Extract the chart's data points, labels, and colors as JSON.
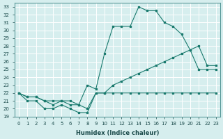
{
  "xlabel": "Humidex (Indice chaleur)",
  "bg_color": "#d6eeee",
  "line_color": "#1a7a6e",
  "grid_color": "#ffffff",
  "xlim": [
    -0.5,
    23.5
  ],
  "ylim": [
    19,
    33.5
  ],
  "yticks": [
    19,
    20,
    21,
    22,
    23,
    24,
    25,
    26,
    27,
    28,
    29,
    30,
    31,
    32,
    33
  ],
  "xticks": [
    0,
    1,
    2,
    3,
    4,
    5,
    6,
    7,
    8,
    9,
    10,
    11,
    12,
    13,
    14,
    15,
    16,
    17,
    18,
    19,
    20,
    21,
    22,
    23
  ],
  "line1_x": [
    0,
    1,
    2,
    3,
    4,
    5,
    6,
    7,
    8,
    9,
    10,
    11,
    12,
    13,
    14,
    15,
    16,
    17,
    18,
    19,
    20,
    21,
    22,
    23
  ],
  "line1_y": [
    22,
    21,
    21,
    20,
    20,
    20.5,
    20,
    19.5,
    19.5,
    22,
    22,
    22,
    22,
    22,
    22,
    22,
    22,
    22,
    22,
    22,
    22,
    22,
    22,
    22
  ],
  "line2_x": [
    0,
    1,
    2,
    3,
    4,
    5,
    6,
    7,
    8,
    9,
    10,
    11,
    12,
    13,
    14,
    15,
    16,
    17,
    18,
    19,
    20,
    21,
    22,
    23
  ],
  "line2_y": [
    22,
    21.5,
    21.5,
    21,
    20.5,
    21,
    20.5,
    20.5,
    23,
    22.5,
    27,
    30.5,
    30.5,
    30.5,
    33,
    32.5,
    32.5,
    31,
    30.5,
    29.5,
    27.5,
    25,
    25,
    25
  ],
  "line3_x": [
    0,
    1,
    2,
    3,
    4,
    5,
    6,
    7,
    8,
    9,
    10,
    11,
    12,
    13,
    14,
    15,
    16,
    17,
    18,
    19,
    20,
    21,
    22,
    23
  ],
  "line3_y": [
    22,
    21.5,
    21.5,
    21,
    21,
    21,
    21,
    20.5,
    20,
    22,
    22,
    23,
    23.5,
    24,
    24.5,
    25,
    25.5,
    26,
    26.5,
    27,
    27.5,
    28,
    25.5,
    25.5
  ]
}
